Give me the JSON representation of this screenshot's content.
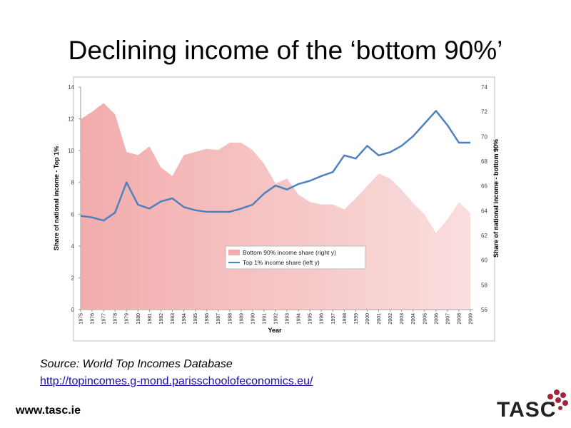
{
  "title": "Declining income of the ‘bottom 90%’",
  "chart_data": {
    "type": "line",
    "xlabel": "Year",
    "ylabel": "Share of national income - Top 1%",
    "y2label": "Share of national income - bottom 90%",
    "categories": [
      "1975",
      "1976",
      "1977",
      "1978",
      "1979",
      "1980",
      "1981",
      "1982",
      "1983",
      "1984",
      "1985",
      "1986",
      "1987",
      "1988",
      "1989",
      "1990",
      "1991",
      "1992",
      "1993",
      "1994",
      "1995",
      "1996",
      "1997",
      "1998",
      "1999",
      "2000",
      "2001",
      "2002",
      "2003",
      "2004",
      "2005",
      "2006",
      "2007",
      "2008",
      "2009"
    ],
    "series": [
      {
        "name": "Bottom 90% income share (right y)",
        "color": "#f2acac",
        "mark": "area",
        "axis": "y2",
        "values": [
          71.4,
          72.0,
          72.7,
          71.8,
          68.75,
          68.5,
          69.2,
          67.5,
          66.8,
          68.5,
          68.75,
          69.0,
          68.9,
          69.5,
          69.5,
          68.9,
          67.8,
          66.2,
          66.6,
          65.3,
          64.7,
          64.5,
          64.5,
          64.1,
          65.0,
          66.0,
          67.0,
          66.6,
          65.7,
          64.6,
          63.7,
          62.2,
          63.3,
          64.7,
          63.8
        ]
      },
      {
        "name": "Top 1% income share (left y)",
        "color": "#4f81bd",
        "mark": "line",
        "values": [
          5.9,
          5.8,
          5.6,
          6.1,
          8.0,
          6.6,
          6.35,
          6.8,
          7.0,
          6.45,
          6.25,
          6.15,
          6.15,
          6.15,
          6.35,
          6.6,
          7.3,
          7.8,
          7.55,
          7.9,
          8.1,
          8.4,
          8.65,
          9.7,
          9.5,
          10.3,
          9.7,
          9.9,
          10.3,
          10.9,
          11.7,
          12.5,
          11.6,
          10.5,
          10.5
        ]
      }
    ],
    "ylim": [
      0,
      14
    ],
    "yticks": [
      0,
      2,
      4,
      6,
      8,
      10,
      12,
      14
    ],
    "y2lim": [
      56,
      74
    ],
    "y2ticks": [
      56,
      58,
      60,
      62,
      64,
      66,
      68,
      70,
      72,
      74
    ],
    "legend": "center"
  },
  "source": "Source: World Top Incomes Database",
  "link": "http://topincomes.g-mond.parisschoolofeconomics.eu/",
  "footer": "www.tasc.ie",
  "logo": "TASC"
}
